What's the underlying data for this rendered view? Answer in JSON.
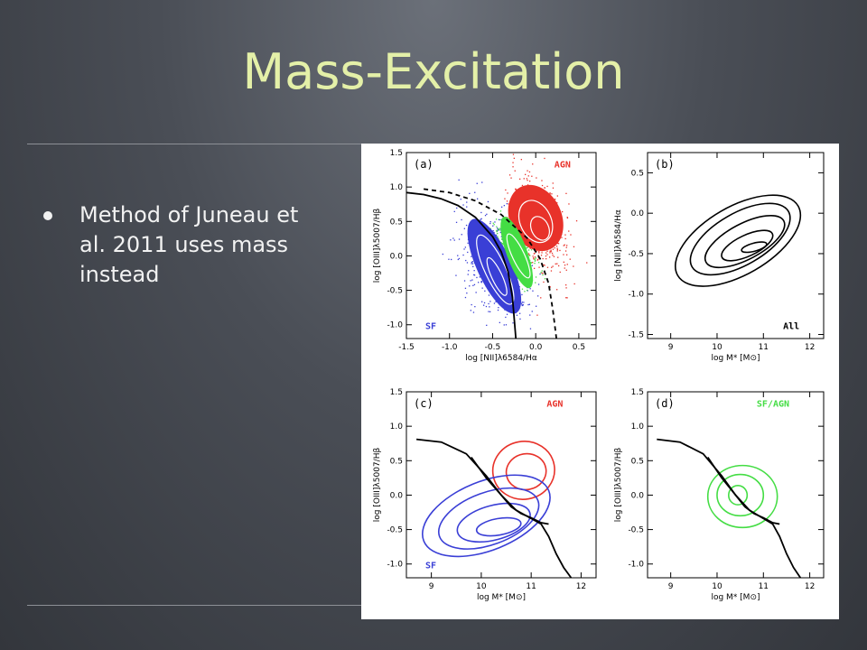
{
  "slide": {
    "title": "Mass-Excitation",
    "bullet": "Method of Juneau et al. 2011 uses mass instead"
  },
  "colors": {
    "agn": "#e8322a",
    "sf": "#3a3fd6",
    "comp": "#44dd44",
    "title": "#e4f0a8"
  },
  "chart_data": [
    {
      "type": "scatter",
      "panel_label": "(a)",
      "xlabel": "log [NII]λ6584/Hα",
      "ylabel": "log [OIII]λ5007/Hβ",
      "xlim": [
        -1.5,
        0.7
      ],
      "ylim": [
        -1.2,
        1.5
      ],
      "xticks": [
        "-1.5",
        "-1.0",
        "-0.5",
        "0.0",
        "0.5"
      ],
      "yticks": [
        "1.5",
        "1.0",
        "0.5",
        "0.0",
        "-0.5",
        "-1.0"
      ],
      "series": [
        {
          "name": "AGN",
          "color": "#e8322a",
          "center": [
            0.05,
            0.45
          ]
        },
        {
          "name": "SF",
          "color": "#3a3fd6",
          "center": [
            -0.5,
            -0.1
          ]
        },
        {
          "name": "",
          "color": "#44dd44",
          "center": [
            -0.25,
            0.05
          ]
        }
      ],
      "curves": [
        {
          "style": "solid",
          "points": [
            [
              -1.5,
              0.92
            ],
            [
              -1.3,
              0.89
            ],
            [
              -1.1,
              0.83
            ],
            [
              -0.9,
              0.73
            ],
            [
              -0.7,
              0.56
            ],
            [
              -0.5,
              0.28
            ],
            [
              -0.4,
              0.06
            ],
            [
              -0.32,
              -0.23
            ],
            [
              -0.27,
              -0.6
            ],
            [
              -0.23,
              -1.2
            ]
          ]
        },
        {
          "style": "dashed",
          "points": [
            [
              -1.3,
              0.97
            ],
            [
              -1.0,
              0.92
            ],
            [
              -0.7,
              0.8
            ],
            [
              -0.4,
              0.6
            ],
            [
              -0.1,
              0.26
            ],
            [
              0.05,
              -0.04
            ],
            [
              0.15,
              -0.4
            ],
            [
              0.2,
              -0.8
            ],
            [
              0.24,
              -1.2
            ]
          ]
        }
      ]
    },
    {
      "type": "line",
      "panel_label": "(b)",
      "label": "All",
      "xlabel": "log M* [M⊙]",
      "ylabel": "log [NII]λ6584/Hα",
      "xlim": [
        8.5,
        12.3
      ],
      "ylim": [
        -1.55,
        0.75
      ],
      "xticks": [
        "9",
        "10",
        "11",
        "12"
      ],
      "yticks": [
        "0.5",
        "0.0",
        "-0.5",
        "-1.0",
        "-1.5"
      ],
      "contours": [
        {
          "center": [
            10.45,
            -0.34
          ],
          "rx": 1.5,
          "ry": 0.42,
          "angle": -30
        },
        {
          "center": [
            10.5,
            -0.32
          ],
          "rx": 1.2,
          "ry": 0.32,
          "angle": -30
        },
        {
          "center": [
            10.6,
            -0.35
          ],
          "rx": 0.95,
          "ry": 0.22,
          "angle": -28
        },
        {
          "center": [
            10.65,
            -0.4
          ],
          "rx": 0.6,
          "ry": 0.13,
          "angle": -25
        },
        {
          "center": [
            10.8,
            -0.42
          ],
          "rx": 0.28,
          "ry": 0.05,
          "angle": -15
        }
      ]
    },
    {
      "type": "line",
      "panel_label": "(c)",
      "xlabel": "log M* [M⊙]",
      "ylabel": "log [OIII]λ5007/Hβ",
      "xlim": [
        8.5,
        12.3
      ],
      "ylim": [
        -1.2,
        1.5
      ],
      "xticks": [
        "9",
        "10",
        "11",
        "12"
      ],
      "yticks": [
        "1.5",
        "1.0",
        "0.5",
        "0.0",
        "-0.5",
        "-1.0"
      ],
      "series": [
        {
          "name": "AGN",
          "color": "#e8322a",
          "contours": [
            {
              "center": [
                10.85,
                0.36
              ],
              "rx": 0.62,
              "ry": 0.42,
              "angle": -10
            },
            {
              "center": [
                10.9,
                0.34
              ],
              "rx": 0.4,
              "ry": 0.26,
              "angle": -10
            }
          ]
        },
        {
          "name": "SF",
          "color": "#3a3fd6",
          "contours": [
            {
              "center": [
                10.1,
                -0.3
              ],
              "rx": 1.35,
              "ry": 0.5,
              "angle": -22
            },
            {
              "center": [
                10.15,
                -0.34
              ],
              "rx": 1.05,
              "ry": 0.38,
              "angle": -20
            },
            {
              "center": [
                10.25,
                -0.4
              ],
              "rx": 0.75,
              "ry": 0.25,
              "angle": -15
            },
            {
              "center": [
                10.35,
                -0.46
              ],
              "rx": 0.45,
              "ry": 0.12,
              "angle": -10
            }
          ]
        }
      ],
      "curves": [
        {
          "style": "solid",
          "points": [
            [
              8.7,
              0.81
            ],
            [
              9.2,
              0.77
            ],
            [
              9.7,
              0.6
            ],
            [
              10.1,
              0.28
            ],
            [
              10.4,
              0.0
            ],
            [
              10.6,
              -0.17
            ],
            [
              10.8,
              -0.27
            ],
            [
              11.0,
              -0.33
            ],
            [
              11.2,
              -0.4
            ],
            [
              11.35,
              -0.42
            ]
          ]
        },
        {
          "style": "solid",
          "points": [
            [
              9.8,
              0.55
            ],
            [
              10.1,
              0.25
            ],
            [
              10.4,
              0.0
            ],
            [
              10.7,
              -0.22
            ],
            [
              11.0,
              -0.34
            ],
            [
              11.2,
              -0.42
            ],
            [
              11.35,
              -0.6
            ],
            [
              11.5,
              -0.85
            ],
            [
              11.65,
              -1.05
            ],
            [
              11.8,
              -1.2
            ]
          ]
        }
      ]
    },
    {
      "type": "line",
      "panel_label": "(d)",
      "xlabel": "log M* [M⊙]",
      "ylabel": "log [OIII]λ5007/Hβ",
      "xlim": [
        8.5,
        12.3
      ],
      "ylim": [
        -1.2,
        1.5
      ],
      "xticks": [
        "9",
        "10",
        "11",
        "12"
      ],
      "yticks": [
        "1.5",
        "1.0",
        "0.5",
        "0.0",
        "-0.5",
        "-1.0"
      ],
      "series": [
        {
          "name": "SF/AGN",
          "color": "#44dd44",
          "contours": [
            {
              "center": [
                10.55,
                -0.02
              ],
              "rx": 0.75,
              "ry": 0.45,
              "angle": 0
            },
            {
              "center": [
                10.5,
                0.0
              ],
              "rx": 0.5,
              "ry": 0.3,
              "angle": 0
            },
            {
              "center": [
                10.45,
                0.0
              ],
              "rx": 0.2,
              "ry": 0.14,
              "angle": 0
            }
          ]
        }
      ],
      "curves": [
        {
          "style": "solid",
          "points": [
            [
              8.7,
              0.81
            ],
            [
              9.2,
              0.77
            ],
            [
              9.7,
              0.6
            ],
            [
              10.1,
              0.28
            ],
            [
              10.4,
              0.0
            ],
            [
              10.6,
              -0.17
            ],
            [
              10.8,
              -0.27
            ],
            [
              11.0,
              -0.33
            ],
            [
              11.2,
              -0.4
            ],
            [
              11.35,
              -0.42
            ]
          ]
        },
        {
          "style": "solid",
          "points": [
            [
              9.8,
              0.55
            ],
            [
              10.1,
              0.25
            ],
            [
              10.4,
              0.0
            ],
            [
              10.7,
              -0.22
            ],
            [
              11.0,
              -0.34
            ],
            [
              11.2,
              -0.42
            ],
            [
              11.35,
              -0.6
            ],
            [
              11.5,
              -0.85
            ],
            [
              11.65,
              -1.05
            ],
            [
              11.8,
              -1.2
            ]
          ]
        }
      ]
    }
  ]
}
